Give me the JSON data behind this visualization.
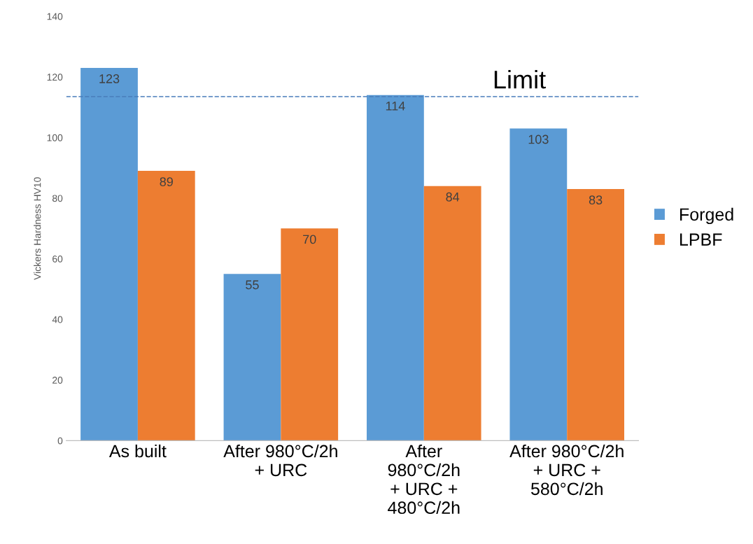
{
  "chart_data": {
    "type": "bar",
    "ylabel": "Vickers Hardness HV10",
    "categories": [
      "As built",
      "After 980°C/2h\n+ URC",
      "After\n980°C/2h\n+ URC +\n480°C/2h",
      "After 980°C/2h\n+ URC +\n580°C/2h"
    ],
    "series": [
      {
        "name": "Forged",
        "color": "#5b9bd5",
        "values": [
          123,
          55,
          114,
          103
        ]
      },
      {
        "name": "LPBF",
        "color": "#ed7d31",
        "values": [
          89,
          70,
          84,
          83
        ]
      }
    ],
    "ylim": [
      0,
      140
    ],
    "yticks": [
      0,
      20,
      40,
      60,
      80,
      100,
      120,
      140
    ],
    "ref_lines": [
      {
        "axis": "y",
        "value": 113.5,
        "label": "Limit",
        "color": "#4a7ebb",
        "line_style": "dashed"
      }
    ],
    "data_labels": true,
    "grid": false,
    "legend": "right"
  }
}
